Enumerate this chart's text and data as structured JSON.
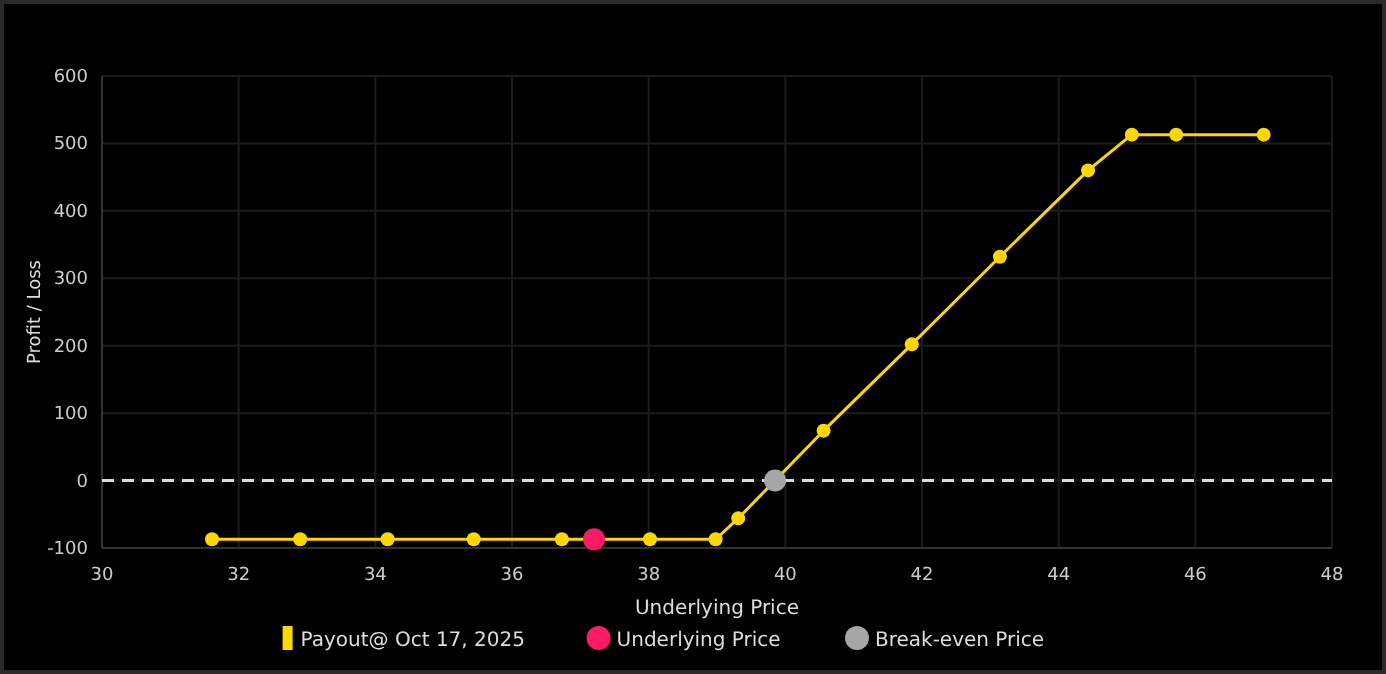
{
  "chart_data": {
    "type": "line",
    "xlabel": "Underlying Price",
    "ylabel": "Profit / Loss",
    "xlim": [
      30,
      48
    ],
    "xticks": [
      30,
      32,
      34,
      36,
      38,
      40,
      42,
      44,
      46,
      48
    ],
    "ylim": [
      -100,
      600
    ],
    "yticks": [
      -100,
      0,
      100,
      200,
      300,
      400,
      500,
      600
    ],
    "grid": true,
    "legend": "bottom",
    "marker": "circle",
    "series": [
      {
        "name": "Payout@ Oct 17, 2025",
        "color": "#ffd700",
        "x": [
          31.61,
          32.9,
          34.18,
          35.44,
          36.73,
          38.02,
          38.98,
          39.31,
          40.56,
          41.85,
          43.14,
          44.43,
          45.07,
          45.72,
          47.0
        ],
        "values": [
          -87,
          -87,
          -87,
          -87,
          -87,
          -87,
          -87,
          -56,
          74,
          202,
          332,
          460,
          513,
          513,
          513
        ]
      },
      {
        "name": "Underlying Price",
        "type": "scatter",
        "color": "#ff1a66",
        "x": [
          37.2
        ],
        "values": [
          -87
        ]
      },
      {
        "name": "Break-even Price",
        "type": "scatter",
        "color": "#a6a6a6",
        "x": [
          39.85
        ],
        "values": [
          0
        ]
      }
    ],
    "ref_lines": [
      {
        "axis": "y",
        "value": 0,
        "color": "#d9d9d9",
        "line_style": "dashed"
      }
    ]
  }
}
